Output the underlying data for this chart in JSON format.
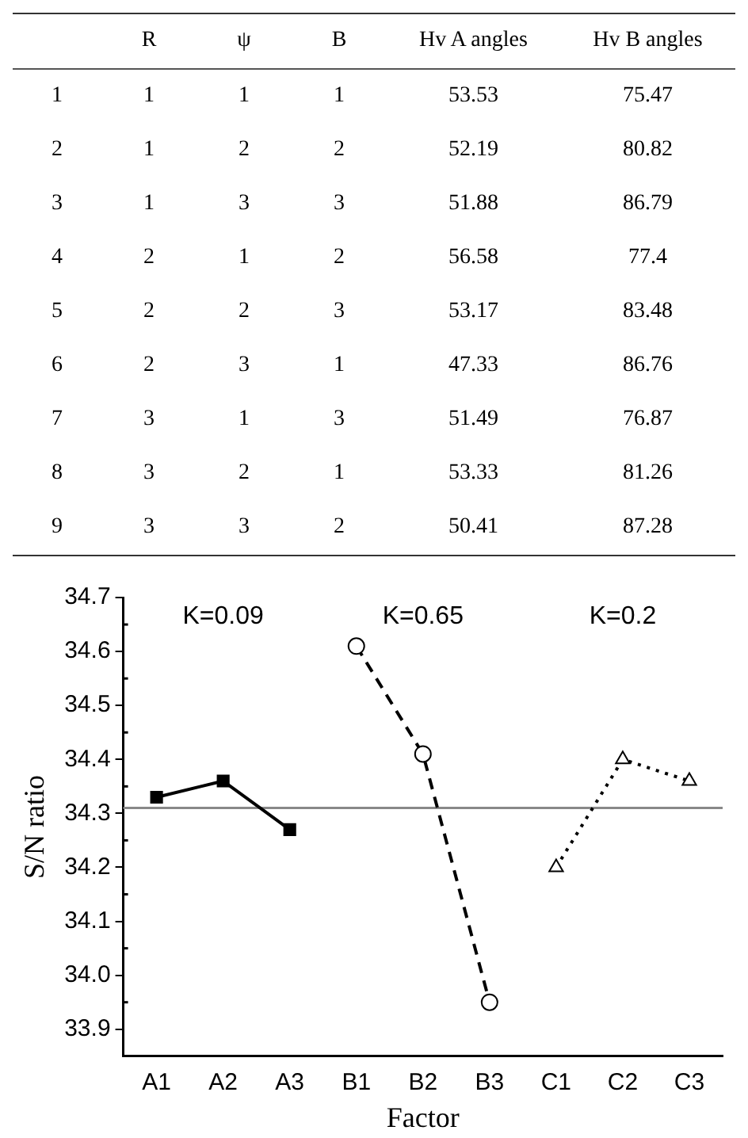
{
  "chart_data": [
    {
      "type": "heatmap",
      "categories": [
        "R",
        "ψ",
        "B",
        "Hv A angles",
        "Hv B angles"
      ],
      "y_categories": [
        "1",
        "2",
        "3",
        "4",
        "5",
        "6",
        "7",
        "8",
        "9"
      ],
      "cells": [
        [
          1,
          1,
          1,
          53.53,
          75.47
        ],
        [
          1,
          2,
          2,
          52.19,
          80.82
        ],
        [
          1,
          3,
          3,
          51.88,
          86.79
        ],
        [
          2,
          1,
          2,
          56.58,
          77.4
        ],
        [
          2,
          2,
          3,
          53.17,
          83.48
        ],
        [
          2,
          3,
          1,
          47.33,
          86.76
        ],
        [
          3,
          1,
          3,
          51.49,
          76.87
        ],
        [
          3,
          2,
          1,
          53.33,
          81.26
        ],
        [
          3,
          3,
          2,
          50.41,
          87.28
        ]
      ],
      "cell_labels": [
        [
          "1",
          "1",
          "1",
          "53.53",
          "75.47"
        ],
        [
          "1",
          "2",
          "2",
          "52.19",
          "80.82"
        ],
        [
          "1",
          "3",
          "3",
          "51.88",
          "86.79"
        ],
        [
          "2",
          "1",
          "2",
          "56.58",
          "77.4"
        ],
        [
          "2",
          "2",
          "3",
          "53.17",
          "83.48"
        ],
        [
          "2",
          "3",
          "1",
          "47.33",
          "86.76"
        ],
        [
          "3",
          "1",
          "3",
          "51.49",
          "76.87"
        ],
        [
          "3",
          "2",
          "1",
          "53.33",
          "81.26"
        ],
        [
          "3",
          "3",
          "2",
          "50.41",
          "87.28"
        ]
      ]
    },
    {
      "type": "line",
      "xlabel": "Factor",
      "ylabel": "S/N ratio",
      "categories": [
        "A1",
        "A2",
        "A3",
        "B1",
        "B2",
        "B3",
        "C1",
        "C2",
        "C3"
      ],
      "series": [
        {
          "color": "#000000",
          "marker": "square",
          "line_style": "solid",
          "values": [
            34.33,
            34.36,
            34.27,
            null,
            null,
            null,
            null,
            null,
            null
          ]
        },
        {
          "color": "#000000",
          "marker": "circle",
          "line_style": "dashed",
          "values": [
            null,
            null,
            null,
            34.61,
            34.41,
            33.95,
            null,
            null,
            null
          ]
        },
        {
          "color": "#000000",
          "marker": "triangle",
          "line_style": "dotted",
          "values": [
            null,
            null,
            null,
            null,
            null,
            null,
            34.2,
            34.4,
            34.36
          ]
        }
      ],
      "ylim": [
        33.85,
        34.7
      ],
      "yticks": [
        33.9,
        {
          "value": 34,
          "label": "34.0"
        },
        34.1,
        34.2,
        34.3,
        34.4,
        34.5,
        34.6,
        34.7
      ],
      "ref_lines": [
        {
          "axis": "y",
          "value": 34.31,
          "color": "#888888"
        }
      ],
      "annotations": [
        "K=0.09",
        "K=0.65",
        "K=0.2"
      ],
      "grid": false,
      "legend": false
    }
  ]
}
